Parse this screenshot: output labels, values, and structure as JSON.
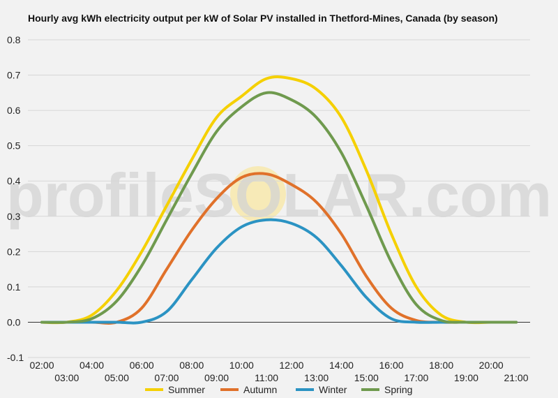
{
  "watermark": "profileSOLAR.com",
  "chart_data": {
    "type": "line",
    "title": "Hourly avg kWh electricity output per kW of Solar PV installed in Thetford-Mines, Canada (by season)",
    "xlabel": "",
    "ylabel": "",
    "ylim": [
      -0.1,
      0.8
    ],
    "yticks": [
      "-0.1",
      "0.0",
      "0.1",
      "0.2",
      "0.3",
      "0.4",
      "0.5",
      "0.6",
      "0.7",
      "0.8"
    ],
    "x": [
      "02:00",
      "03:00",
      "04:00",
      "05:00",
      "06:00",
      "07:00",
      "08:00",
      "09:00",
      "10:00",
      "11:00",
      "12:00",
      "13:00",
      "14:00",
      "15:00",
      "16:00",
      "17:00",
      "18:00",
      "19:00",
      "20:00",
      "21:00"
    ],
    "grid": true,
    "legend": "bottom",
    "series": [
      {
        "name": "Summer",
        "color": "#f5d000",
        "values": [
          0,
          0,
          0.02,
          0.09,
          0.2,
          0.33,
          0.46,
          0.58,
          0.64,
          0.69,
          0.69,
          0.66,
          0.58,
          0.43,
          0.25,
          0.1,
          0.02,
          0,
          0,
          0
        ]
      },
      {
        "name": "Autumn",
        "color": "#e0712a",
        "values": [
          0,
          0,
          0,
          0,
          0.04,
          0.15,
          0.26,
          0.35,
          0.41,
          0.42,
          0.39,
          0.34,
          0.25,
          0.13,
          0.04,
          0.005,
          0,
          0,
          0,
          0
        ]
      },
      {
        "name": "Winter",
        "color": "#2b93c3",
        "values": [
          0,
          0,
          0,
          0,
          0,
          0.03,
          0.12,
          0.21,
          0.27,
          0.29,
          0.28,
          0.24,
          0.16,
          0.07,
          0.01,
          0,
          0,
          0,
          0,
          0
        ]
      },
      {
        "name": "Spring",
        "color": "#6f9a4e",
        "values": [
          0,
          0,
          0.01,
          0.06,
          0.16,
          0.29,
          0.42,
          0.54,
          0.61,
          0.65,
          0.63,
          0.58,
          0.48,
          0.33,
          0.17,
          0.05,
          0.005,
          0,
          0,
          0
        ]
      }
    ]
  }
}
